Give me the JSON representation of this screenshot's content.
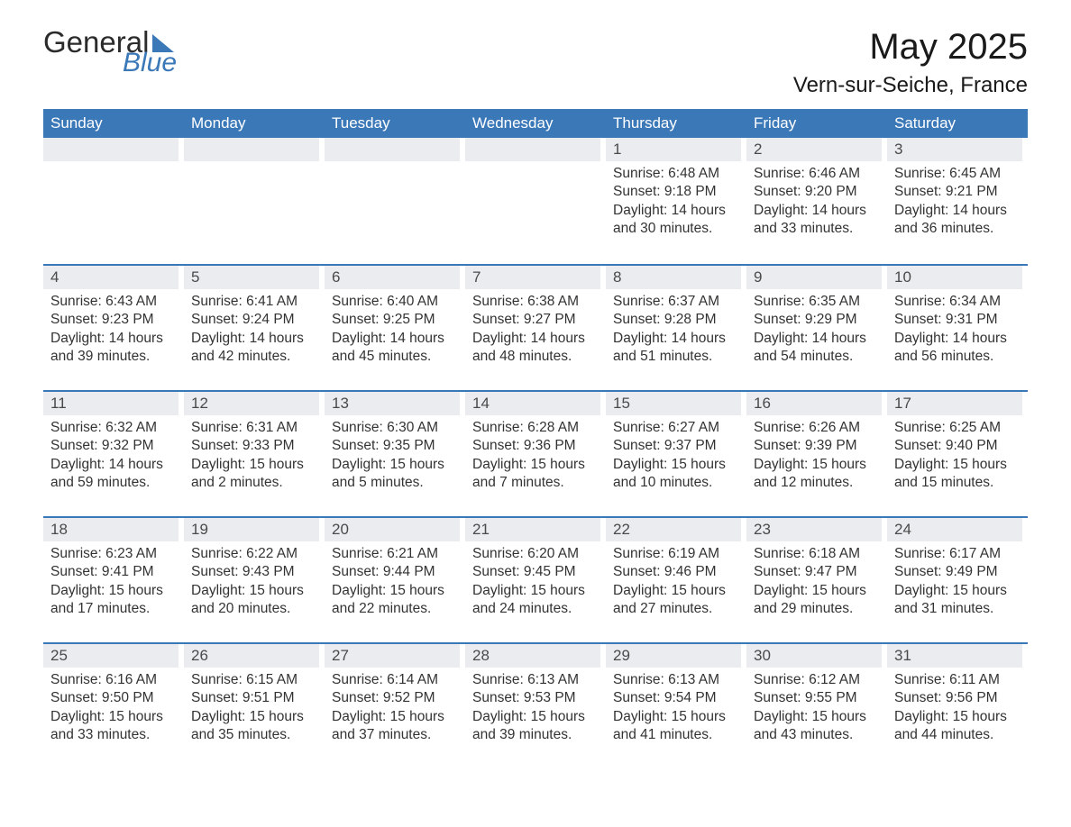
{
  "logo": {
    "word1": "General",
    "word2": "Blue"
  },
  "title": {
    "month": "May 2025",
    "location": "Vern-sur-Seiche, France"
  },
  "colors": {
    "header_bg": "#3b78b8",
    "header_text": "#ffffff",
    "daynum_bg": "#eaecef",
    "row_border": "#3b78b8",
    "body_text": "#333333",
    "page_bg": "#ffffff"
  },
  "day_labels": [
    "Sunday",
    "Monday",
    "Tuesday",
    "Wednesday",
    "Thursday",
    "Friday",
    "Saturday"
  ],
  "weeks": [
    [
      null,
      null,
      null,
      null,
      {
        "n": "1",
        "sr": "6:48 AM",
        "ss": "9:18 PM",
        "dl": "14 hours and 30 minutes."
      },
      {
        "n": "2",
        "sr": "6:46 AM",
        "ss": "9:20 PM",
        "dl": "14 hours and 33 minutes."
      },
      {
        "n": "3",
        "sr": "6:45 AM",
        "ss": "9:21 PM",
        "dl": "14 hours and 36 minutes."
      }
    ],
    [
      {
        "n": "4",
        "sr": "6:43 AM",
        "ss": "9:23 PM",
        "dl": "14 hours and 39 minutes."
      },
      {
        "n": "5",
        "sr": "6:41 AM",
        "ss": "9:24 PM",
        "dl": "14 hours and 42 minutes."
      },
      {
        "n": "6",
        "sr": "6:40 AM",
        "ss": "9:25 PM",
        "dl": "14 hours and 45 minutes."
      },
      {
        "n": "7",
        "sr": "6:38 AM",
        "ss": "9:27 PM",
        "dl": "14 hours and 48 minutes."
      },
      {
        "n": "8",
        "sr": "6:37 AM",
        "ss": "9:28 PM",
        "dl": "14 hours and 51 minutes."
      },
      {
        "n": "9",
        "sr": "6:35 AM",
        "ss": "9:29 PM",
        "dl": "14 hours and 54 minutes."
      },
      {
        "n": "10",
        "sr": "6:34 AM",
        "ss": "9:31 PM",
        "dl": "14 hours and 56 minutes."
      }
    ],
    [
      {
        "n": "11",
        "sr": "6:32 AM",
        "ss": "9:32 PM",
        "dl": "14 hours and 59 minutes."
      },
      {
        "n": "12",
        "sr": "6:31 AM",
        "ss": "9:33 PM",
        "dl": "15 hours and 2 minutes."
      },
      {
        "n": "13",
        "sr": "6:30 AM",
        "ss": "9:35 PM",
        "dl": "15 hours and 5 minutes."
      },
      {
        "n": "14",
        "sr": "6:28 AM",
        "ss": "9:36 PM",
        "dl": "15 hours and 7 minutes."
      },
      {
        "n": "15",
        "sr": "6:27 AM",
        "ss": "9:37 PM",
        "dl": "15 hours and 10 minutes."
      },
      {
        "n": "16",
        "sr": "6:26 AM",
        "ss": "9:39 PM",
        "dl": "15 hours and 12 minutes."
      },
      {
        "n": "17",
        "sr": "6:25 AM",
        "ss": "9:40 PM",
        "dl": "15 hours and 15 minutes."
      }
    ],
    [
      {
        "n": "18",
        "sr": "6:23 AM",
        "ss": "9:41 PM",
        "dl": "15 hours and 17 minutes."
      },
      {
        "n": "19",
        "sr": "6:22 AM",
        "ss": "9:43 PM",
        "dl": "15 hours and 20 minutes."
      },
      {
        "n": "20",
        "sr": "6:21 AM",
        "ss": "9:44 PM",
        "dl": "15 hours and 22 minutes."
      },
      {
        "n": "21",
        "sr": "6:20 AM",
        "ss": "9:45 PM",
        "dl": "15 hours and 24 minutes."
      },
      {
        "n": "22",
        "sr": "6:19 AM",
        "ss": "9:46 PM",
        "dl": "15 hours and 27 minutes."
      },
      {
        "n": "23",
        "sr": "6:18 AM",
        "ss": "9:47 PM",
        "dl": "15 hours and 29 minutes."
      },
      {
        "n": "24",
        "sr": "6:17 AM",
        "ss": "9:49 PM",
        "dl": "15 hours and 31 minutes."
      }
    ],
    [
      {
        "n": "25",
        "sr": "6:16 AM",
        "ss": "9:50 PM",
        "dl": "15 hours and 33 minutes."
      },
      {
        "n": "26",
        "sr": "6:15 AM",
        "ss": "9:51 PM",
        "dl": "15 hours and 35 minutes."
      },
      {
        "n": "27",
        "sr": "6:14 AM",
        "ss": "9:52 PM",
        "dl": "15 hours and 37 minutes."
      },
      {
        "n": "28",
        "sr": "6:13 AM",
        "ss": "9:53 PM",
        "dl": "15 hours and 39 minutes."
      },
      {
        "n": "29",
        "sr": "6:13 AM",
        "ss": "9:54 PM",
        "dl": "15 hours and 41 minutes."
      },
      {
        "n": "30",
        "sr": "6:12 AM",
        "ss": "9:55 PM",
        "dl": "15 hours and 43 minutes."
      },
      {
        "n": "31",
        "sr": "6:11 AM",
        "ss": "9:56 PM",
        "dl": "15 hours and 44 minutes."
      }
    ]
  ],
  "labels": {
    "sunrise": "Sunrise: ",
    "sunset": "Sunset: ",
    "daylight": "Daylight: "
  }
}
